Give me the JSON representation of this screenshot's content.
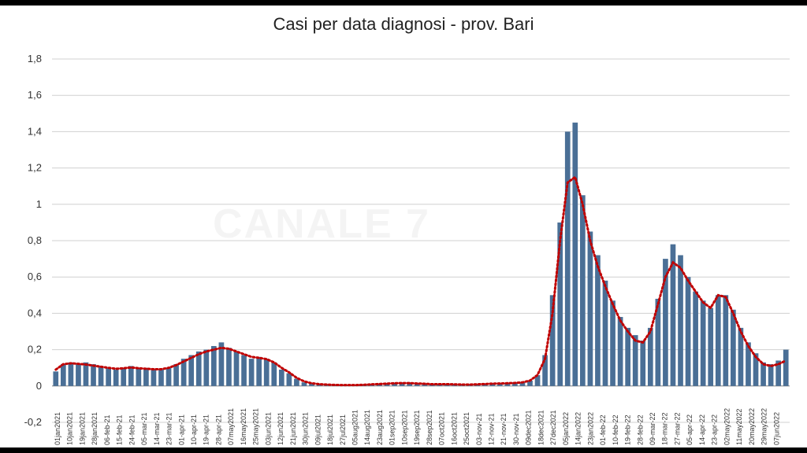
{
  "watermark": "CANALE 7",
  "colors": {
    "bar": "#4a6f96",
    "ma": "#c00000",
    "grid": "#d0d0d0",
    "axis": "#888888"
  },
  "chart_data": {
    "type": "bar",
    "title": "Casi per data diagnosi - prov. Bari",
    "xlabel": "",
    "ylabel": "",
    "ylim": [
      -0.2,
      1.8
    ],
    "yticks": [
      "-0,2",
      "0",
      "0,2",
      "0,4",
      "0,6",
      "0,8",
      "1",
      "1,2",
      "1,4",
      "1,6",
      "1,8"
    ],
    "grid": true,
    "legend": "none",
    "x_tick_labels": [
      "01jan2021",
      "10jan2021",
      "19jan2021",
      "28jan2021",
      "06-feb-21",
      "15-feb-21",
      "24-feb-21",
      "05-mar-21",
      "14-mar-21",
      "23-mar-21",
      "01-apr-21",
      "10-apr-21",
      "19-apr-21",
      "28-apr-21",
      "07may2021",
      "16may2021",
      "25may2021",
      "03jun2021",
      "12jun2021",
      "21jun2021",
      "30jun2021",
      "09jul2021",
      "18jul2021",
      "27jul2021",
      "05aug2021",
      "14aug2021",
      "23aug2021",
      "01sep2021",
      "10sep2021",
      "19sep2021",
      "28sep2021",
      "07oct2021",
      "16oct2021",
      "25oct2021",
      "03-nov-21",
      "12-nov-21",
      "21-nov-21",
      "30-nov-21",
      "09dec2021",
      "18dec2021",
      "27dec2021",
      "05jan2022",
      "14jan2022",
      "23jan2022",
      "01-feb-22",
      "10-feb-22",
      "19-feb-22",
      "28-feb-22",
      "09-mar-22",
      "18-mar-22",
      "27-mar-22",
      "05-apr-22",
      "14-apr-22",
      "23-apr-22",
      "02may2022",
      "11may2022",
      "20may2022",
      "29may2022",
      "07jun2022"
    ],
    "series": [
      {
        "type": "bar",
        "values": [
          0.08,
          0.12,
          0.13,
          0.12,
          0.13,
          0.12,
          0.11,
          0.1,
          0.09,
          0.1,
          0.11,
          0.1,
          0.1,
          0.09,
          0.09,
          0.1,
          0.12,
          0.15,
          0.17,
          0.19,
          0.2,
          0.22,
          0.24,
          0.21,
          0.19,
          0.17,
          0.15,
          0.16,
          0.15,
          0.13,
          0.09,
          0.07,
          0.04,
          0.02,
          0.015,
          0.01,
          0.01,
          0.008,
          0.008,
          0.006,
          0.006,
          0.008,
          0.01,
          0.012,
          0.015,
          0.018,
          0.02,
          0.02,
          0.015,
          0.012,
          0.01,
          0.01,
          0.012,
          0.01,
          0.008,
          0.008,
          0.01,
          0.012,
          0.015,
          0.015,
          0.015,
          0.02,
          0.02,
          0.03,
          0.06,
          0.17,
          0.5,
          0.9,
          1.4,
          1.45,
          1.05,
          0.85,
          0.72,
          0.58,
          0.47,
          0.38,
          0.32,
          0.28,
          0.25,
          0.32,
          0.48,
          0.7,
          0.78,
          0.72,
          0.6,
          0.52,
          0.47,
          0.43,
          0.5,
          0.5,
          0.42,
          0.32,
          0.24,
          0.18,
          0.13,
          0.12,
          0.14,
          0.2
        ]
      },
      {
        "type": "line",
        "style": "dotted",
        "values": [
          0.09,
          0.12,
          0.125,
          0.122,
          0.118,
          0.112,
          0.106,
          0.1,
          0.095,
          0.098,
          0.102,
          0.098,
          0.095,
          0.092,
          0.092,
          0.1,
          0.115,
          0.135,
          0.155,
          0.175,
          0.19,
          0.2,
          0.21,
          0.205,
          0.19,
          0.175,
          0.16,
          0.155,
          0.148,
          0.13,
          0.1,
          0.075,
          0.045,
          0.025,
          0.015,
          0.01,
          0.008,
          0.006,
          0.005,
          0.005,
          0.005,
          0.007,
          0.009,
          0.011,
          0.013,
          0.015,
          0.016,
          0.016,
          0.014,
          0.012,
          0.01,
          0.01,
          0.01,
          0.009,
          0.008,
          0.008,
          0.009,
          0.011,
          0.013,
          0.014,
          0.015,
          0.017,
          0.02,
          0.03,
          0.06,
          0.15,
          0.4,
          0.8,
          1.12,
          1.15,
          1.0,
          0.8,
          0.66,
          0.55,
          0.45,
          0.36,
          0.3,
          0.25,
          0.24,
          0.3,
          0.45,
          0.6,
          0.68,
          0.65,
          0.58,
          0.52,
          0.46,
          0.43,
          0.5,
          0.49,
          0.4,
          0.3,
          0.22,
          0.16,
          0.12,
          0.11,
          0.12,
          0.14
        ]
      }
    ]
  }
}
